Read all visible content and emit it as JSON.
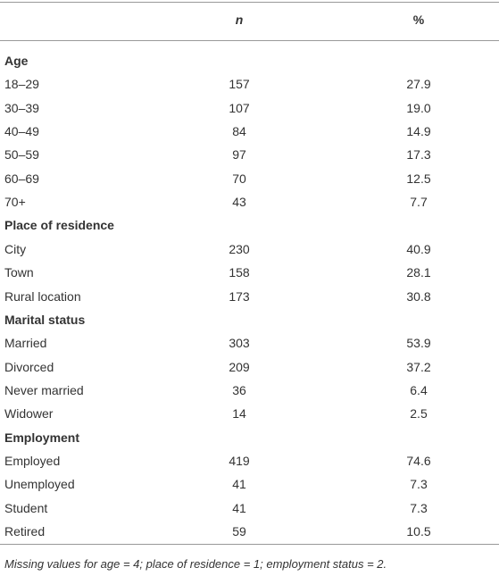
{
  "table": {
    "header": {
      "n": "n",
      "percent": "%"
    },
    "sections": [
      {
        "title": "Age",
        "rows": [
          [
            "18–29",
            "157",
            "27.9"
          ],
          [
            "30–39",
            "107",
            "19.0"
          ],
          [
            "40–49",
            "84",
            "14.9"
          ],
          [
            "50–59",
            "97",
            "17.3"
          ],
          [
            "60–69",
            "70",
            "12.5"
          ],
          [
            "70+",
            "43",
            "7.7"
          ]
        ]
      },
      {
        "title": "Place of residence",
        "rows": [
          [
            "City",
            "230",
            "40.9"
          ],
          [
            "Town",
            "158",
            "28.1"
          ],
          [
            "Rural location",
            "173",
            "30.8"
          ]
        ]
      },
      {
        "title": "Marital status",
        "rows": [
          [
            "Married",
            "303",
            "53.9"
          ],
          [
            "Divorced",
            "209",
            "37.2"
          ],
          [
            "Never married",
            "36",
            "6.4"
          ],
          [
            "Widower",
            "14",
            "2.5"
          ]
        ]
      },
      {
        "title": "Employment",
        "rows": [
          [
            "Employed",
            "419",
            "74.6"
          ],
          [
            "Unemployed",
            "41",
            "7.3"
          ],
          [
            "Student",
            "41",
            "7.3"
          ],
          [
            "Retired",
            "59",
            "10.5"
          ]
        ]
      }
    ],
    "footnote": "Missing values for age = 4; place of residence = 1; employment status = 2."
  }
}
